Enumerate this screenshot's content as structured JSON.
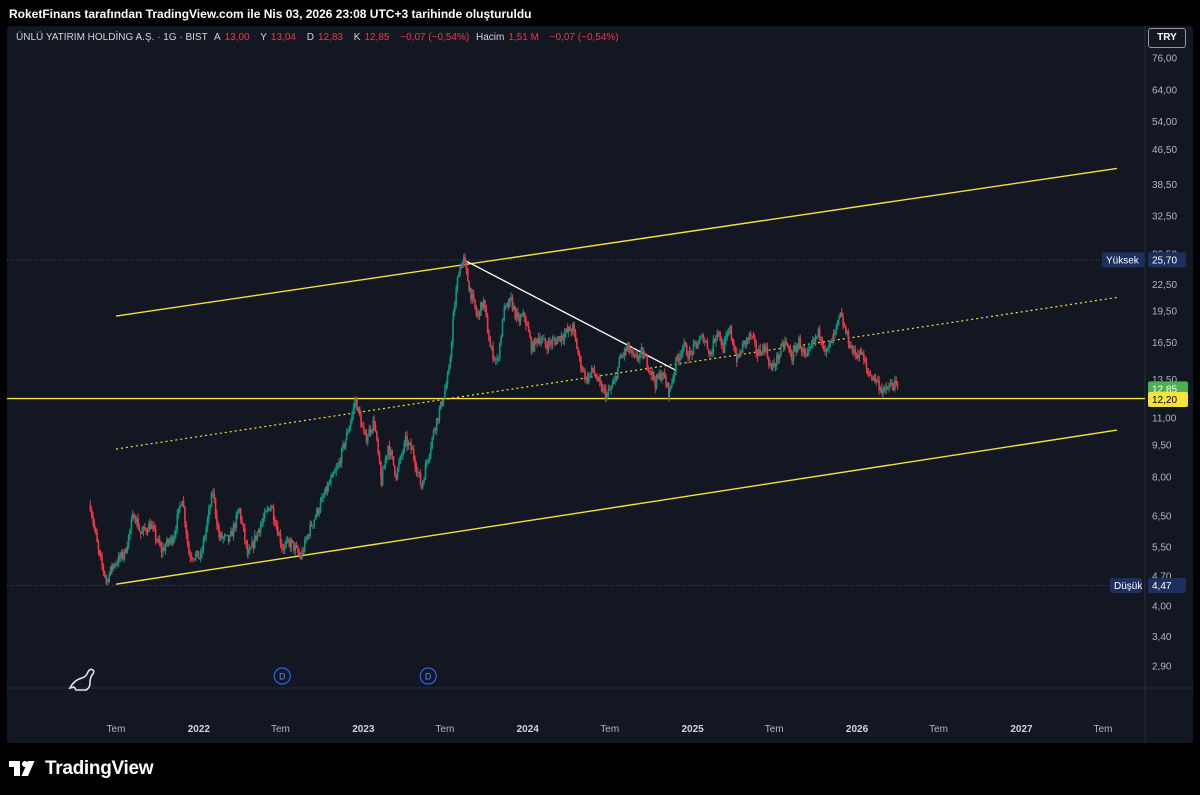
{
  "header": {
    "attribution": "RoketFinans tarafından TradingView.com ile Nis 03, 2026 23:08 UTC+3 tarihinde oluşturuldu"
  },
  "legend": {
    "symbol": "ÜNLÜ YATIRIM HOLDİNG A.Ş. · 1G · BIST",
    "open_label": "A",
    "open": "13,00",
    "high_label": "Y",
    "high": "13,04",
    "low_label": "D",
    "low": "12,83",
    "close_label": "K",
    "close": "12,85",
    "change": "−0,07 (−0,54%)",
    "volume_label": "Hacim",
    "volume": "1,51 M",
    "volume_change": "−0,07 (−0,54%)"
  },
  "currency": "TRY",
  "footer": {
    "brand": "TradingView"
  },
  "colors": {
    "background": "#131722",
    "grid": "#1e222d",
    "candle_up": "#089981",
    "candle_down": "#f23645",
    "channel": "#f5e23b",
    "trendline": "#ffffff",
    "axis_text": "#b2b5be",
    "last_price_bg": "#4caf50",
    "level_bg": "#f5e23b",
    "hi_lo_bg": "#1c2f5e"
  },
  "chart_data": {
    "type": "candlestick",
    "scale": "log",
    "y_ticks": [
      "76,00",
      "64,00",
      "54,00",
      "46,50",
      "38,50",
      "32,50",
      "26,50",
      "22,50",
      "19,50",
      "16,50",
      "13,50",
      "11,00",
      "9,50",
      "8,00",
      "6,50",
      "5,50",
      "4,70",
      "4,00",
      "3,40",
      "2,90"
    ],
    "x_ticks": [
      {
        "label": "Tem",
        "date": "2021-07"
      },
      {
        "label": "2022",
        "date": "2022-01"
      },
      {
        "label": "Tem",
        "date": "2022-07"
      },
      {
        "label": "2023",
        "date": "2023-01"
      },
      {
        "label": "Tem",
        "date": "2023-07"
      },
      {
        "label": "2024",
        "date": "2024-01"
      },
      {
        "label": "Tem",
        "date": "2024-07"
      },
      {
        "label": "2025",
        "date": "2025-01"
      },
      {
        "label": "Tem",
        "date": "2025-07"
      },
      {
        "label": "2026",
        "date": "2026-01"
      },
      {
        "label": "Tem",
        "date": "2026-07"
      },
      {
        "label": "2027",
        "date": "2027-01"
      },
      {
        "label": "Tem",
        "date": "2027-07"
      }
    ],
    "price_path": [
      [
        "2021-05-05",
        6.9
      ],
      [
        "2021-05-25",
        5.2
      ],
      [
        "2021-06-10",
        4.6
      ],
      [
        "2021-06-25",
        5.0
      ],
      [
        "2021-07-20",
        5.3
      ],
      [
        "2021-08-10",
        6.6
      ],
      [
        "2021-08-25",
        5.9
      ],
      [
        "2021-09-15",
        6.2
      ],
      [
        "2021-10-10",
        5.4
      ],
      [
        "2021-11-05",
        5.8
      ],
      [
        "2021-11-25",
        7.2
      ],
      [
        "2021-12-10",
        5.3
      ],
      [
        "2022-01-05",
        5.2
      ],
      [
        "2022-02-01",
        7.4
      ],
      [
        "2022-02-15",
        5.8
      ],
      [
        "2022-03-10",
        5.7
      ],
      [
        "2022-04-01",
        6.7
      ],
      [
        "2022-04-20",
        5.2
      ],
      [
        "2022-05-15",
        6.1
      ],
      [
        "2022-06-10",
        6.9
      ],
      [
        "2022-07-05",
        5.5
      ],
      [
        "2022-07-25",
        5.6
      ],
      [
        "2022-08-15",
        5.2
      ],
      [
        "2022-09-05",
        6.1
      ],
      [
        "2022-09-25",
        6.8
      ],
      [
        "2022-10-15",
        7.6
      ],
      [
        "2022-11-05",
        8.4
      ],
      [
        "2022-11-25",
        10.0
      ],
      [
        "2022-12-15",
        12.1
      ],
      [
        "2023-01-05",
        9.8
      ],
      [
        "2023-01-25",
        10.8
      ],
      [
        "2023-02-10",
        7.8
      ],
      [
        "2023-02-25",
        9.5
      ],
      [
        "2023-03-15",
        8.1
      ],
      [
        "2023-04-05",
        9.7
      ],
      [
        "2023-04-20",
        9.2
      ],
      [
        "2023-05-10",
        7.6
      ],
      [
        "2023-05-25",
        9.0
      ],
      [
        "2023-06-10",
        10.6
      ],
      [
        "2023-06-25",
        12.0
      ],
      [
        "2023-07-10",
        14.0
      ],
      [
        "2023-07-20",
        19.0
      ],
      [
        "2023-08-01",
        24.5
      ],
      [
        "2023-08-12",
        25.7
      ],
      [
        "2023-08-25",
        22.0
      ],
      [
        "2023-09-10",
        19.0
      ],
      [
        "2023-09-25",
        20.5
      ],
      [
        "2023-10-10",
        16.0
      ],
      [
        "2023-10-25",
        14.8
      ],
      [
        "2023-11-10",
        19.5
      ],
      [
        "2023-11-25",
        20.6
      ],
      [
        "2023-12-10",
        18.5
      ],
      [
        "2023-12-25",
        19.0
      ],
      [
        "2024-01-10",
        16.0
      ],
      [
        "2024-01-25",
        17.0
      ],
      [
        "2024-02-10",
        16.3
      ],
      [
        "2024-03-01",
        16.6
      ],
      [
        "2024-03-20",
        17.2
      ],
      [
        "2024-04-10",
        17.8
      ],
      [
        "2024-04-25",
        15.0
      ],
      [
        "2024-05-10",
        13.5
      ],
      [
        "2024-05-25",
        14.2
      ],
      [
        "2024-06-10",
        13.0
      ],
      [
        "2024-06-25",
        12.4
      ],
      [
        "2024-07-10",
        13.2
      ],
      [
        "2024-07-25",
        15.2
      ],
      [
        "2024-08-10",
        16.0
      ],
      [
        "2024-08-25",
        15.0
      ],
      [
        "2024-09-10",
        15.6
      ],
      [
        "2024-09-25",
        14.6
      ],
      [
        "2024-10-10",
        13.3
      ],
      [
        "2024-10-25",
        14.0
      ],
      [
        "2024-11-10",
        12.6
      ],
      [
        "2024-11-25",
        14.8
      ],
      [
        "2024-12-10",
        16.2
      ],
      [
        "2024-12-25",
        15.4
      ],
      [
        "2025-01-10",
        16.3
      ],
      [
        "2025-01-25",
        17.0
      ],
      [
        "2025-02-10",
        15.5
      ],
      [
        "2025-02-25",
        17.8
      ],
      [
        "2025-03-10",
        16.0
      ],
      [
        "2025-03-25",
        17.6
      ],
      [
        "2025-04-10",
        15.0
      ],
      [
        "2025-04-25",
        16.4
      ],
      [
        "2025-05-10",
        17.1
      ],
      [
        "2025-05-25",
        15.5
      ],
      [
        "2025-06-10",
        16.2
      ],
      [
        "2025-06-25",
        14.2
      ],
      [
        "2025-07-10",
        15.3
      ],
      [
        "2025-07-25",
        16.5
      ],
      [
        "2025-08-10",
        15.2
      ],
      [
        "2025-08-25",
        16.6
      ],
      [
        "2025-09-10",
        15.0
      ],
      [
        "2025-09-25",
        16.4
      ],
      [
        "2025-10-10",
        17.5
      ],
      [
        "2025-10-25",
        15.6
      ],
      [
        "2025-11-10",
        16.9
      ],
      [
        "2025-11-25",
        19.0
      ],
      [
        "2025-12-10",
        17.0
      ],
      [
        "2025-12-25",
        15.5
      ],
      [
        "2026-01-10",
        15.6
      ],
      [
        "2026-01-25",
        14.0
      ],
      [
        "2026-02-10",
        13.6
      ],
      [
        "2026-03-01",
        12.6
      ],
      [
        "2026-03-20",
        13.2
      ],
      [
        "2026-04-03",
        12.85
      ]
    ],
    "drawings": {
      "channel_upper": [
        [
          "2021-07-01",
          19.0
        ],
        [
          "2027-08-01",
          42.0
        ]
      ],
      "channel_lower": [
        [
          "2021-07-01",
          4.5
        ],
        [
          "2027-08-01",
          10.3
        ]
      ],
      "channel_mid": [
        [
          "2021-07-01",
          9.3
        ],
        [
          "2027-08-01",
          21.0
        ]
      ],
      "support_level": 12.2,
      "trendline": [
        [
          "2023-08-12",
          25.7
        ],
        [
          "2024-11-25",
          14.2
        ]
      ]
    },
    "price_labels": {
      "last": "12,85",
      "level": "12,20",
      "high_tag": "Yüksek",
      "high_value": "25,70",
      "low_tag": "Düşük",
      "low_value": "4,47"
    },
    "dividend_markers": [
      {
        "date": "2022-07-05",
        "label": "D"
      },
      {
        "date": "2023-05-25",
        "label": "D"
      }
    ]
  }
}
